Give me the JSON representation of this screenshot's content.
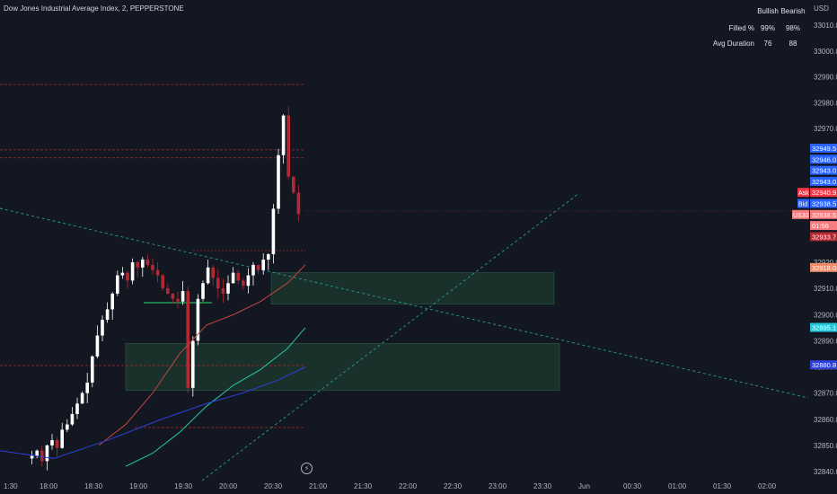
{
  "header": {
    "title": "Dow Jones Industrial Average Index, 2, PEPPERSTONE",
    "currency": "USD"
  },
  "stats": {
    "columns": [
      "Bullish",
      "Bearish"
    ],
    "rows": [
      {
        "label": "Filled %",
        "bullish": "99%",
        "bearish": "98%"
      },
      {
        "label": "Avg Duration",
        "bullish": "76",
        "bearish": "88"
      }
    ]
  },
  "colors": {
    "background": "#131722",
    "up": "#ffffff",
    "down": "#b22833",
    "ema_fast": "#c2463f",
    "ema_mid": "#26c6a6",
    "ema_slow": "#2d3fd6",
    "zone_fill": "#1e3a2f",
    "trend_line": "#2a9d8f",
    "resistance": "#b22833"
  },
  "chart_data": {
    "type": "candlestick",
    "symbol": "US30",
    "interval": "2",
    "ylim": [
      32840,
      33015
    ],
    "y_ticks": [
      32840,
      32850,
      32860,
      32870,
      32880,
      32890,
      32900,
      32910,
      32920,
      32970,
      32980,
      32990,
      33000,
      33010
    ],
    "y_tick_labels": [
      "32840.0",
      "32850.0",
      "32860.0",
      "32870.0",
      "32880.0",
      "32890.0",
      "32900.0",
      "32910.0",
      "32920.0",
      "32970.0",
      "32980.0",
      "32990.0",
      "33000.0",
      "33010.0"
    ],
    "x_ticks": [
      "1:30",
      "18:00",
      "18:30",
      "19:00",
      "19:30",
      "20:00",
      "20:30",
      "21:00",
      "21:30",
      "22:00",
      "22:30",
      "23:00",
      "23:30",
      "Jun",
      "00:30",
      "01:00",
      "01:30",
      "02:00"
    ],
    "price_labels": [
      {
        "text": "32949.5",
        "value": 32949.5,
        "color": "#2962ff"
      },
      {
        "text": "32946.0",
        "value": 32946.0,
        "color": "#2962ff"
      },
      {
        "text": "32943.0",
        "value": 32943.0,
        "color": "#2962ff"
      },
      {
        "text": "32943.0",
        "value": 32943.0,
        "color": "#2962ff"
      },
      {
        "text": "32940.9",
        "value": 32940.9,
        "color": "#f23645",
        "tag": "Ask"
      },
      {
        "text": "32938.5",
        "value": 32938.5,
        "color": "#2962ff",
        "tag": "Bid"
      },
      {
        "text": "32938.5",
        "value": 32938.5,
        "color": "#f77c80",
        "tag": "US30"
      },
      {
        "text": "01:56",
        "value": 32935.5,
        "color": "#f77c80"
      },
      {
        "text": "32933.7",
        "value": 32933.7,
        "color": "#b22833"
      },
      {
        "text": "32918.0",
        "value": 32918.0,
        "color": "#ef8a6a"
      },
      {
        "text": "32895.1",
        "value": 32895.1,
        "color": "#26c6da"
      },
      {
        "text": "32880.8",
        "value": 32880.8,
        "color": "#2d3fd6"
      }
    ],
    "zones": [
      {
        "from": "20:00",
        "to": "23:40",
        "low": 32904,
        "high": 32916
      },
      {
        "from": "18:40",
        "to": "23:50",
        "low": 32871,
        "high": 32889
      }
    ],
    "resistance_lines": [
      32987,
      32962,
      32959
    ],
    "support_lines": [
      32908,
      32857
    ],
    "series": [
      {
        "name": "EMA fast",
        "values": [
          32850,
          32858,
          32870,
          32885,
          32896,
          32900,
          32905,
          32912,
          32919
        ]
      },
      {
        "name": "EMA mid",
        "values": [
          32842,
          32847,
          32855,
          32865,
          32873,
          32879,
          32887,
          32895
        ]
      },
      {
        "name": "EMA slow",
        "values": [
          32848,
          32845,
          32852,
          32860,
          32866,
          32870,
          32875,
          32880
        ]
      }
    ]
  }
}
